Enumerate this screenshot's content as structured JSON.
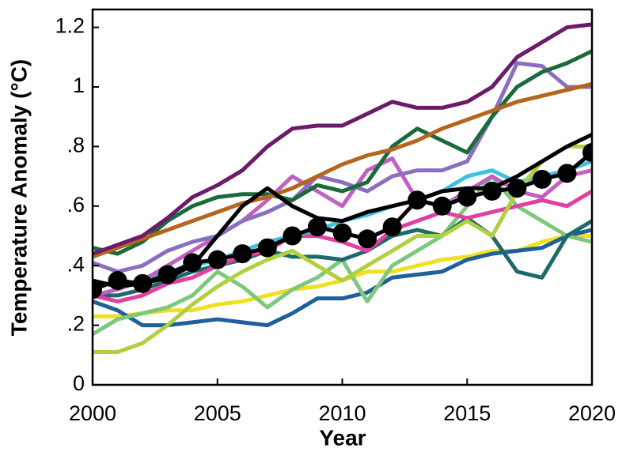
{
  "chart_data": {
    "type": "line",
    "x_label": "Year",
    "y_label": "Temperature Anomaly (°C)",
    "x": [
      2000,
      2001,
      2002,
      2003,
      2004,
      2005,
      2006,
      2007,
      2008,
      2009,
      2010,
      2011,
      2012,
      2013,
      2014,
      2015,
      2016,
      2017,
      2018,
      2019,
      2020
    ],
    "xlim": [
      2000,
      2020
    ],
    "xticks": [
      2000,
      2005,
      2010,
      2015,
      2020
    ],
    "ylim": [
      0,
      1.26
    ],
    "yticks": [
      0,
      {
        "value": 0.2,
        "label": ".2"
      },
      {
        "value": 0.4,
        "label": ".4"
      },
      {
        "value": 0.6,
        "label": ".6"
      },
      {
        "value": 0.8,
        "label": ".8"
      },
      1,
      1.2
    ],
    "grid": false,
    "series": [
      {
        "color": "#f0e020",
        "values": [
          0.23,
          0.23,
          0.24,
          0.25,
          0.25,
          0.27,
          0.28,
          0.3,
          0.32,
          0.33,
          0.35,
          0.38,
          0.38,
          0.4,
          0.42,
          0.43,
          0.45,
          0.45,
          0.48,
          0.5,
          0.5
        ]
      },
      {
        "color": "#1f5f9a",
        "values": [
          0.28,
          0.25,
          0.2,
          0.2,
          0.21,
          0.22,
          0.21,
          0.2,
          0.24,
          0.29,
          0.29,
          0.31,
          0.36,
          0.37,
          0.38,
          0.42,
          0.44,
          0.45,
          0.46,
          0.5,
          0.52
        ]
      },
      {
        "color": "#7ec87e",
        "values": [
          0.17,
          0.22,
          0.24,
          0.26,
          0.3,
          0.38,
          0.33,
          0.26,
          0.32,
          0.36,
          0.42,
          0.28,
          0.4,
          0.45,
          0.5,
          0.6,
          0.7,
          0.6,
          0.55,
          0.5,
          0.48
        ]
      },
      {
        "color": "#1e6a6a",
        "values": [
          0.3,
          0.3,
          0.32,
          0.35,
          0.38,
          0.4,
          0.42,
          0.45,
          0.43,
          0.43,
          0.42,
          0.45,
          0.5,
          0.52,
          0.5,
          0.56,
          0.5,
          0.38,
          0.36,
          0.5,
          0.55
        ]
      },
      {
        "color": "#e040a0",
        "values": [
          0.3,
          0.28,
          0.3,
          0.34,
          0.36,
          0.4,
          0.43,
          0.45,
          0.5,
          0.5,
          0.48,
          0.45,
          0.52,
          0.55,
          0.58,
          0.56,
          0.58,
          0.6,
          0.62,
          0.6,
          0.65
        ]
      },
      {
        "color": "#40c0e0",
        "values": [
          0.35,
          0.33,
          0.35,
          0.38,
          0.4,
          0.42,
          0.45,
          0.48,
          0.5,
          0.52,
          0.55,
          0.57,
          0.6,
          0.62,
          0.65,
          0.7,
          0.72,
          0.68,
          0.7,
          0.72,
          0.75
        ]
      },
      {
        "color": "#c060c0",
        "values": [
          0.3,
          0.32,
          0.35,
          0.4,
          0.45,
          0.5,
          0.55,
          0.62,
          0.7,
          0.65,
          0.6,
          0.72,
          0.76,
          0.62,
          0.6,
          0.65,
          0.7,
          0.65,
          0.63,
          0.7,
          0.72
        ]
      },
      {
        "color": "#b0d040",
        "values": [
          0.11,
          0.11,
          0.14,
          0.2,
          0.27,
          0.33,
          0.38,
          0.42,
          0.45,
          0.4,
          0.35,
          0.4,
          0.45,
          0.5,
          0.5,
          0.55,
          0.5,
          0.65,
          0.75,
          0.8,
          0.8
        ]
      },
      {
        "color": "#8a6fc0",
        "values": [
          0.41,
          0.38,
          0.4,
          0.45,
          0.48,
          0.5,
          0.55,
          0.58,
          0.62,
          0.7,
          0.68,
          0.65,
          0.7,
          0.72,
          0.72,
          0.75,
          0.9,
          1.08,
          1.07,
          1.0,
          1.0
        ]
      },
      {
        "color": "#1a6b3a",
        "values": [
          0.46,
          0.44,
          0.48,
          0.55,
          0.6,
          0.63,
          0.64,
          0.64,
          0.62,
          0.67,
          0.65,
          0.68,
          0.8,
          0.86,
          0.82,
          0.78,
          0.9,
          1.0,
          1.05,
          1.08,
          1.12
        ]
      },
      {
        "color": "#b5651d",
        "values": [
          0.43,
          0.46,
          0.49,
          0.52,
          0.55,
          0.58,
          0.61,
          0.63,
          0.66,
          0.7,
          0.74,
          0.77,
          0.79,
          0.82,
          0.86,
          0.89,
          0.92,
          0.95,
          0.97,
          0.99,
          1.01
        ]
      },
      {
        "color": "#6a1b6a",
        "values": [
          0.44,
          0.47,
          0.5,
          0.56,
          0.63,
          0.67,
          0.72,
          0.8,
          0.86,
          0.87,
          0.87,
          0.91,
          0.95,
          0.93,
          0.93,
          0.95,
          1.0,
          1.1,
          1.15,
          1.2,
          1.21
        ]
      },
      {
        "color": "#000000",
        "values": [
          0.35,
          0.33,
          0.34,
          0.36,
          0.4,
          0.5,
          0.6,
          0.66,
          0.6,
          0.56,
          0.55,
          0.58,
          0.6,
          0.62,
          0.65,
          0.66,
          0.66,
          0.7,
          0.75,
          0.8,
          0.84
        ]
      },
      {
        "color": "#000000",
        "marker": true,
        "values": [
          0.32,
          0.35,
          0.34,
          0.37,
          0.41,
          0.42,
          0.44,
          0.46,
          0.5,
          0.53,
          0.51,
          0.49,
          0.53,
          0.62,
          0.6,
          0.63,
          0.65,
          0.66,
          0.69,
          0.71,
          0.78
        ]
      }
    ]
  }
}
